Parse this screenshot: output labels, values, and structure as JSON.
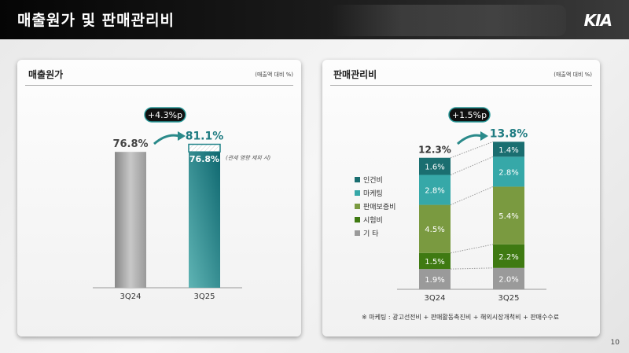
{
  "header": {
    "title": "매출원가 및 판매관리비",
    "logo": "KIA"
  },
  "page_number": "10",
  "left_panel": {
    "title": "매출원가",
    "unit": "(매출액 대비 %)"
  },
  "right_panel": {
    "title": "판매관리비",
    "unit": "(매출액 대비 %)",
    "footnote": "※  마케팅 : 광고선전비 + 판매활동촉진비 + 해외시장개척비 + 판매수수료"
  },
  "chart_data": [
    {
      "type": "bar",
      "categories": [
        "3Q24",
        "3Q25"
      ],
      "values": [
        76.8,
        81.1
      ],
      "labels": [
        "76.8%",
        "81.1%"
      ],
      "inner_label": "76.8%",
      "inner_value": 76.8,
      "annotation": "(관세 영향 제외 시)",
      "change_badge": "+4.3%p",
      "colors": {
        "3Q24": "#a8a8a8",
        "3Q25": "#1f8288"
      }
    },
    {
      "type": "bar",
      "stacked": true,
      "categories": [
        "3Q24",
        "3Q25"
      ],
      "totals": [
        12.3,
        13.8
      ],
      "total_labels": [
        "12.3%",
        "13.8%"
      ],
      "change_badge": "+1.5%p",
      "series": [
        {
          "name": "기  타",
          "values": [
            1.9,
            2.0
          ],
          "color": "#9a9a9a"
        },
        {
          "name": "시험비",
          "values": [
            1.5,
            2.2
          ],
          "color": "#3f7a12"
        },
        {
          "name": "판매보증비",
          "values": [
            4.5,
            5.4
          ],
          "color": "#7a9a40"
        },
        {
          "name": "마케팅",
          "values": [
            2.8,
            2.8
          ],
          "color": "#36a8a8"
        },
        {
          "name": "인건비",
          "values": [
            1.6,
            1.4
          ],
          "color": "#1a6e70"
        }
      ]
    }
  ]
}
